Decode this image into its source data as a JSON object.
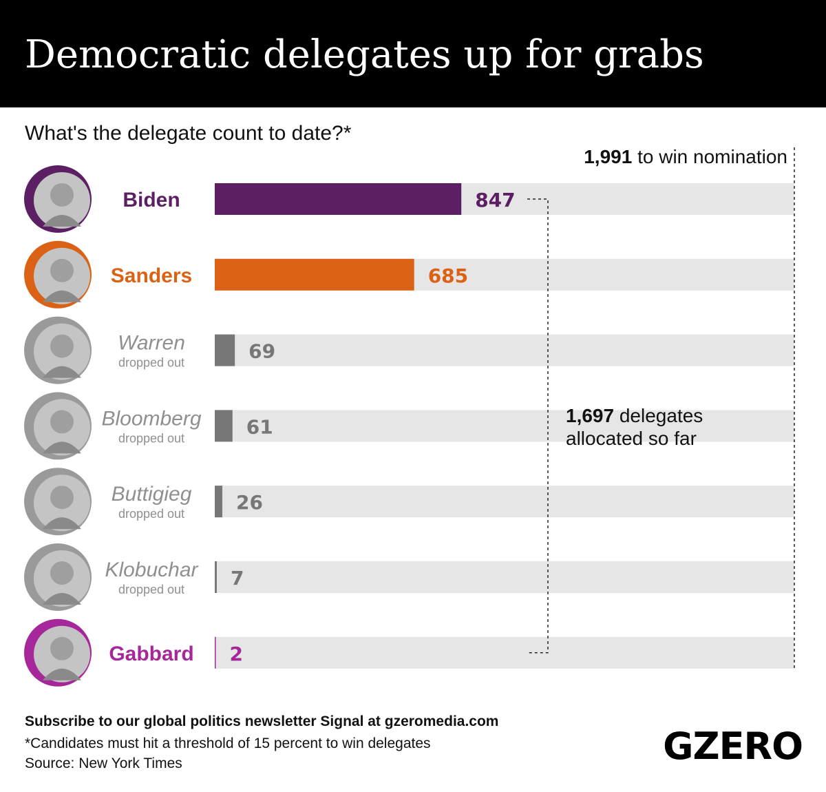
{
  "header": {
    "title": "Democratic delegates up for grabs"
  },
  "subtitle": "What's the delegate count to date?*",
  "chart_data": {
    "type": "bar",
    "orientation": "horizontal",
    "title": "Democratic delegates up for grabs",
    "subtitle": "What's the delegate count to date?*",
    "xlim": [
      0,
      1991
    ],
    "grid": false,
    "categories": [
      "Biden",
      "Sanders",
      "Warren",
      "Bloomberg",
      "Buttigieg",
      "Klobuchar",
      "Gabbard"
    ],
    "values": [
      847,
      685,
      69,
      61,
      26,
      7,
      2
    ],
    "status": [
      "",
      "",
      "dropped out",
      "dropped out",
      "dropped out",
      "dropped out",
      ""
    ],
    "colors": [
      "#5c1f63",
      "#db6214",
      "#777777",
      "#777777",
      "#777777",
      "#777777",
      "#a5279a"
    ],
    "annotations": {
      "threshold": {
        "value": 1991,
        "bold": "1,991",
        "text": " to win nomination"
      },
      "allocated": {
        "value": 1697,
        "bold": "1,697",
        "line1": " delegates",
        "line2": "allocated so far"
      }
    }
  },
  "footer": {
    "subscribe": "Subscribe to our global politics newsletter Signal at gzeromedia.com",
    "note": "*Candidates must hit a threshold of 15 percent to win delegates",
    "source": "Source: New York Times"
  },
  "logo": {
    "text": "GZERO"
  }
}
